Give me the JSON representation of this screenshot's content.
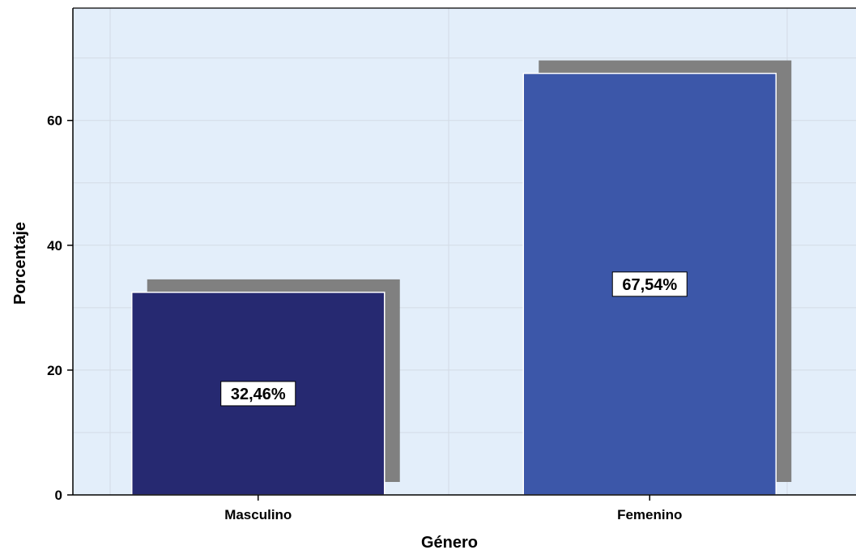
{
  "chart_data": {
    "type": "bar",
    "categories": [
      "Masculino",
      "Femenino"
    ],
    "values": [
      32.46,
      67.54
    ],
    "data_labels": [
      "32,46%",
      "67,54%"
    ],
    "xlabel": "Género",
    "ylabel": "Porcentaje",
    "ylim": [
      0,
      78
    ],
    "yticks": [
      0,
      20,
      40,
      60
    ],
    "ytick_labels": [
      "0",
      "20",
      "40",
      "60"
    ],
    "grid": true,
    "bar_colors": [
      "#262971",
      "#3c57a9"
    ],
    "shadow_color": "#808080",
    "background_color": "#e3eefa"
  }
}
